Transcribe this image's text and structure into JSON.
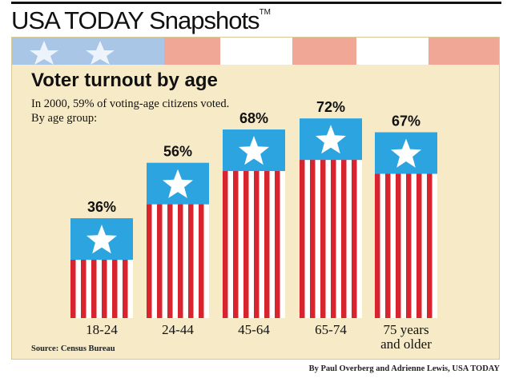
{
  "header": {
    "brand": "USA TODAY Snapshots",
    "trademark": "TM"
  },
  "chart_data": {
    "type": "bar",
    "title": "Voter turnout by age",
    "subtitle": "In 2000, 59% of voting-age citizens voted. By age group:",
    "categories": [
      "18-24",
      "24-44",
      "45-64",
      "65-74",
      "75 years and older"
    ],
    "category_lines": [
      [
        "18-24"
      ],
      [
        "24-44"
      ],
      [
        "45-64"
      ],
      [
        "65-74"
      ],
      [
        "75 years",
        "and older"
      ]
    ],
    "values": [
      36,
      56,
      68,
      72,
      67
    ],
    "value_labels": [
      "36%",
      "56%",
      "68%",
      "72%",
      "67%"
    ],
    "ylim": [
      0,
      100
    ],
    "xlabel": "",
    "ylabel": "",
    "grid": false,
    "source": "Source: Census Bureau",
    "credit": "By Paul Overberg and Adrienne Lewis, USA TODAY"
  },
  "colors": {
    "panel_background": "#f7ebc7",
    "stripe_red": "#d7242e",
    "stripe_white": "#ffffff",
    "canton_blue": "#2ba4e0",
    "star": "#ffffff",
    "band_blue": "#a9c6e6",
    "band_red": "#f0a795"
  },
  "icons": {
    "bar_decoration": "star-icon"
  }
}
